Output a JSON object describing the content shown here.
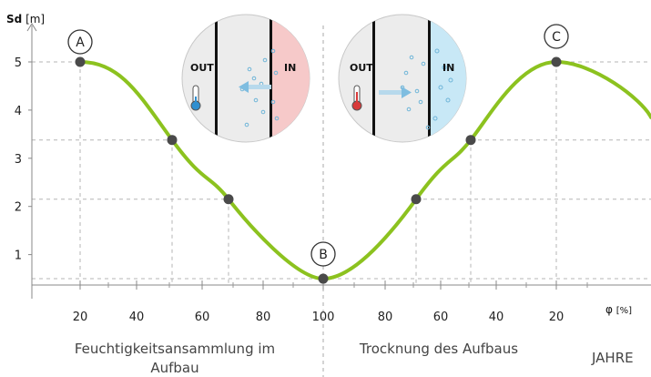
{
  "chart_data": {
    "type": "line",
    "ylabel": "Sd",
    "yunit": "[m]",
    "xlabel": "φ",
    "xunit": "[%]",
    "ylim": [
      0.45,
      5.4
    ],
    "yticks": [
      1,
      2,
      3,
      4,
      5
    ],
    "x_tick_labels": [
      "20",
      "40",
      "60",
      "80",
      "100",
      "80",
      "60",
      "40",
      "20"
    ],
    "series": [
      {
        "color": "#8cc21f",
        "points": [
          {
            "x": "20",
            "y": 5.0
          },
          {
            "x": "50",
            "y": 3.38
          },
          {
            "x": "70",
            "y": 2.15
          },
          {
            "x": "100",
            "y": 0.5
          },
          {
            "x": "70",
            "y": 2.15
          },
          {
            "x": "50",
            "y": 3.38
          },
          {
            "x": "20",
            "y": 5.0
          }
        ]
      }
    ],
    "markers": [
      {
        "label": "A",
        "y": 5.0
      },
      {
        "label": "B",
        "y": 0.5
      },
      {
        "label": "C",
        "y": 5.0
      }
    ],
    "captions": {
      "left": [
        "Feuchtigkeitsansammlung im",
        "Aufbau"
      ],
      "right": "Trocknung des Aufbaus",
      "years": "JAHRE"
    },
    "insets": [
      {
        "side_left": "OUT",
        "side_right": "IN",
        "arrow": "leftward",
        "in_color": "#f6c9c9",
        "thermometer": "cold"
      },
      {
        "side_left": "OUT",
        "side_right": "IN",
        "arrow": "rightward",
        "in_color": "#c8e8f6",
        "thermometer": "warm"
      }
    ],
    "grid": "dashed reference lines at points",
    "colors": {
      "curve": "#8cc21f",
      "point": "#4a4a4a",
      "grid": "#b5b5b5"
    }
  }
}
